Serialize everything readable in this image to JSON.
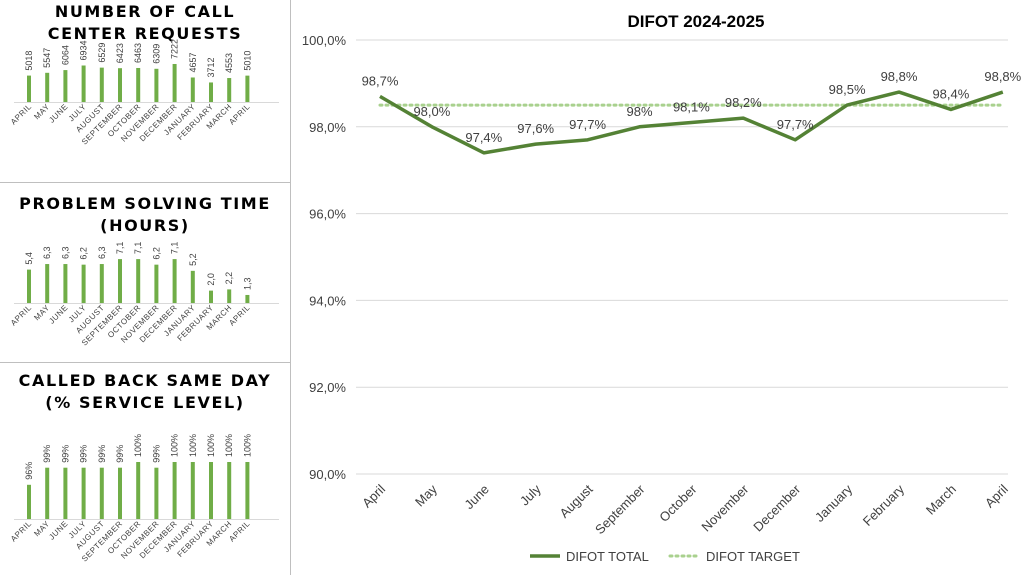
{
  "colors": {
    "bar": "#70ad47",
    "line": "#548235",
    "target": "#a9d18e",
    "grid": "#d9d9d9"
  },
  "panels": [
    {
      "title_line1": "NUMBER OF CALL",
      "title_line2": "CENTER REQUESTS"
    },
    {
      "title_line1": "PROBLEM SOLVING TIME",
      "title_line2": "(HOURS)"
    },
    {
      "title_line1": "CALLED BACK SAME DAY",
      "title_line2": "(% SERVICE LEVEL)"
    }
  ],
  "chart_data": [
    {
      "type": "bar",
      "title": "NUMBER OF CALL CENTER REQUESTS",
      "categories": [
        "APRIL",
        "MAY",
        "JUNE",
        "JULY",
        "AUGUST",
        "SEPTEMBER",
        "OCTOBER",
        "NOVEMBER",
        "DECEMBER",
        "JANUARY",
        "FEBRUARY",
        "MARCH",
        "APRIL"
      ],
      "values": [
        5018,
        5547,
        6064,
        6934,
        6529,
        6423,
        6463,
        6309,
        7222,
        4657,
        3712,
        4553,
        5010
      ],
      "labels": [
        "5018",
        "5547",
        "6064",
        "6934",
        "6529",
        "6423",
        "6463",
        "6309",
        "7222",
        "4657",
        "3712",
        "4553",
        "5010"
      ],
      "ylim": [
        0,
        7600
      ]
    },
    {
      "type": "bar",
      "title": "PROBLEM SOLVING TIME (HOURS)",
      "categories": [
        "APRIL",
        "MAY",
        "JUNE",
        "JULY",
        "AUGUST",
        "SEPTEMBER",
        "OCTOBER",
        "NOVEMBER",
        "DECEMBER",
        "JANUARY",
        "FEBRUARY",
        "MARCH",
        "APRIL"
      ],
      "values": [
        5.4,
        6.3,
        6.3,
        6.2,
        6.3,
        7.1,
        7.1,
        6.2,
        7.1,
        5.2,
        2.0,
        2.2,
        1.3
      ],
      "labels": [
        "5,4",
        "6,3",
        "6,3",
        "6,2",
        "6,3",
        "7,1",
        "7,1",
        "6,2",
        "7,1",
        "5,2",
        "2,0",
        "2,2",
        "1,3"
      ],
      "ylim": [
        0,
        7.6
      ]
    },
    {
      "type": "bar",
      "title": "CALLED BACK SAME DAY (% SERVICE LEVEL)",
      "categories": [
        "APRIL",
        "MAY",
        "JUNE",
        "JULY",
        "AUGUST",
        "SEPTEMBER",
        "OCTOBER",
        "NOVEMBER",
        "DECEMBER",
        "JANUARY",
        "FEBRUARY",
        "MARCH",
        "APRIL"
      ],
      "values": [
        96,
        99,
        99,
        99,
        99,
        99,
        100,
        99,
        100,
        100,
        100,
        100,
        100
      ],
      "labels": [
        "96%",
        "99%",
        "99%",
        "99%",
        "99%",
        "99%",
        "100%",
        "99%",
        "100%",
        "100%",
        "100%",
        "100%",
        "100%"
      ],
      "ylim": [
        90,
        100
      ]
    },
    {
      "type": "line",
      "title": "DIFOT 2024-2025",
      "categories": [
        "April",
        "May",
        "June",
        "July",
        "August",
        "September",
        "October",
        "November",
        "December",
        "January",
        "February",
        "March",
        "April"
      ],
      "series": [
        {
          "name": "DIFOT TOTAL",
          "values": [
            98.7,
            98.0,
            97.4,
            97.6,
            97.7,
            98.0,
            98.1,
            98.2,
            97.7,
            98.5,
            98.8,
            98.4,
            98.8
          ],
          "labels": [
            "98,7%",
            "98,0%",
            "97,4%",
            "97,6%",
            "97,7%",
            "98%",
            "98,1%",
            "98,2%",
            "97,7%",
            "98,5%",
            "98,8%",
            "98,4%",
            "98,8%"
          ]
        },
        {
          "name": "DIFOT TARGET",
          "values": [
            98.5,
            98.5,
            98.5,
            98.5,
            98.5,
            98.5,
            98.5,
            98.5,
            98.5,
            98.5,
            98.5,
            98.5,
            98.5
          ]
        }
      ],
      "yticks": [
        "100,0%",
        "98,0%",
        "96,0%",
        "94,0%",
        "92,0%",
        "90,0%"
      ],
      "ytick_values": [
        100,
        98,
        96,
        94,
        92,
        90
      ],
      "ylim": [
        90,
        100
      ],
      "grid": true,
      "legend": "bottom"
    }
  ]
}
